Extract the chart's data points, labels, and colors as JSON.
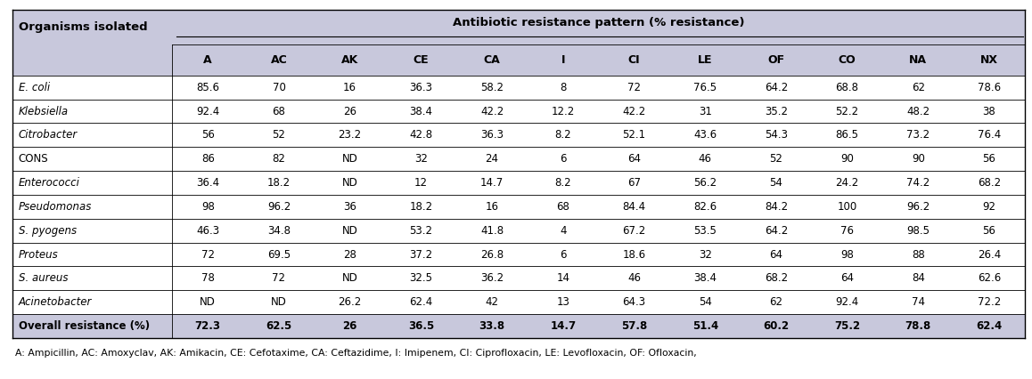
{
  "title": "Antibiotic resistance pattern (% resistance)",
  "col_header": [
    "A",
    "AC",
    "AK",
    "CE",
    "CA",
    "I",
    "CI",
    "LE",
    "OF",
    "CO",
    "NA",
    "NX"
  ],
  "row_header": [
    "E. coli",
    "Klebsiella",
    "Citrobacter",
    "CONS",
    "Enterococci",
    "Pseudomonas",
    "S. pyogens",
    "Proteus",
    "S. aureus",
    "Acinetobacter",
    "Overall resistance (%)"
  ],
  "row_italic": [
    true,
    true,
    true,
    false,
    true,
    true,
    true,
    true,
    true,
    true,
    false
  ],
  "data": [
    [
      "85.6",
      "70",
      "16",
      "36.3",
      "58.2",
      "8",
      "72",
      "76.5",
      "64.2",
      "68.8",
      "62",
      "78.6"
    ],
    [
      "92.4",
      "68",
      "26",
      "38.4",
      "42.2",
      "12.2",
      "42.2",
      "31",
      "35.2",
      "52.2",
      "48.2",
      "38"
    ],
    [
      "56",
      "52",
      "23.2",
      "42.8",
      "36.3",
      "8.2",
      "52.1",
      "43.6",
      "54.3",
      "86.5",
      "73.2",
      "76.4"
    ],
    [
      "86",
      "82",
      "ND",
      "32",
      "24",
      "6",
      "64",
      "46",
      "52",
      "90",
      "90",
      "56"
    ],
    [
      "36.4",
      "18.2",
      "ND",
      "12",
      "14.7",
      "8.2",
      "67",
      "56.2",
      "54",
      "24.2",
      "74.2",
      "68.2"
    ],
    [
      "98",
      "96.2",
      "36",
      "18.2",
      "16",
      "68",
      "84.4",
      "82.6",
      "84.2",
      "100",
      "96.2",
      "92"
    ],
    [
      "46.3",
      "34.8",
      "ND",
      "53.2",
      "41.8",
      "4",
      "67.2",
      "53.5",
      "64.2",
      "76",
      "98.5",
      "56"
    ],
    [
      "72",
      "69.5",
      "28",
      "37.2",
      "26.8",
      "6",
      "18.6",
      "32",
      "64",
      "98",
      "88",
      "26.4"
    ],
    [
      "78",
      "72",
      "ND",
      "32.5",
      "36.2",
      "14",
      "46",
      "38.4",
      "68.2",
      "64",
      "84",
      "62.6"
    ],
    [
      "ND",
      "ND",
      "26.2",
      "62.4",
      "42",
      "13",
      "64.3",
      "54",
      "62",
      "92.4",
      "74",
      "72.2"
    ],
    [
      "72.3",
      "62.5",
      "26",
      "36.5",
      "33.8",
      "14.7",
      "57.8",
      "51.4",
      "60.2",
      "75.2",
      "78.8",
      "62.4"
    ]
  ],
  "header_bg": "#c8c8dc",
  "data_bg": "#ffffff",
  "last_row_bg": "#c8c8dc",
  "border_color": "#000000",
  "text_color": "#000000",
  "figsize": [
    11.58,
    4.26
  ],
  "dpi": 100
}
